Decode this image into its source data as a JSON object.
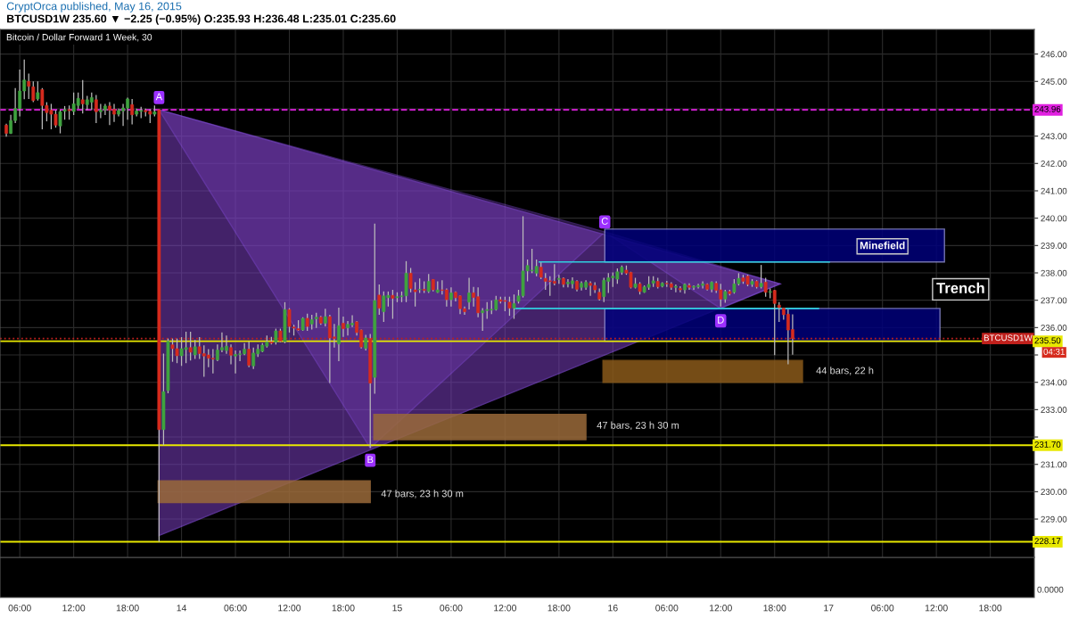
{
  "chart_data": {
    "type": "candlestick",
    "title": "Bitcoin / Dollar Forward 1 Week, 30",
    "subtitle": "BTCUSD1W 235.60 ▼ −2.25 (−0.95%) O:235.93 H:236.48 L:235.01 C:235.60",
    "x": [
      "2015-05-13T04:30",
      "2015-05-13T05:00",
      "2015-05-13T05:30",
      "2015-05-13T06:00",
      "2015-05-13T06:30",
      "2015-05-13T07:00",
      "2015-05-13T07:30",
      "2015-05-13T08:00",
      "2015-05-13T08:30",
      "2015-05-13T09:00",
      "2015-05-13T09:30",
      "2015-05-13T10:00",
      "2015-05-13T10:30",
      "2015-05-13T11:00",
      "2015-05-13T11:30",
      "2015-05-13T12:00",
      "2015-05-13T12:30",
      "2015-05-13T13:00",
      "2015-05-13T13:30",
      "2015-05-13T14:00",
      "2015-05-13T14:30",
      "2015-05-13T15:00",
      "2015-05-13T15:30",
      "2015-05-13T16:00",
      "2015-05-13T16:30",
      "2015-05-13T17:00",
      "2015-05-13T17:30",
      "2015-05-13T18:00",
      "2015-05-13T18:30",
      "2015-05-13T19:00",
      "2015-05-13T19:30",
      "2015-05-13T20:00",
      "2015-05-13T20:30",
      "2015-05-13T21:00",
      "2015-05-13T21:30",
      "2015-05-13T22:00",
      "2015-05-13T22:30",
      "2015-05-13T23:00",
      "2015-05-13T23:30",
      "2015-05-14T00:00",
      "2015-05-14T00:30",
      "2015-05-14T01:00",
      "2015-05-14T01:30",
      "2015-05-14T02:00",
      "2015-05-14T02:30",
      "2015-05-14T03:00",
      "2015-05-14T03:30",
      "2015-05-14T04:00",
      "2015-05-14T04:30",
      "2015-05-14T05:00",
      "2015-05-14T05:30",
      "2015-05-14T06:00",
      "2015-05-14T06:30",
      "2015-05-14T07:00",
      "2015-05-14T07:30",
      "2015-05-14T08:00",
      "2015-05-14T08:30",
      "2015-05-14T09:00",
      "2015-05-14T09:30",
      "2015-05-14T10:00",
      "2015-05-14T10:30",
      "2015-05-14T11:00",
      "2015-05-14T11:30",
      "2015-05-14T12:00",
      "2015-05-14T12:30",
      "2015-05-14T13:00",
      "2015-05-14T13:30",
      "2015-05-14T14:00",
      "2015-05-14T14:30",
      "2015-05-14T15:00",
      "2015-05-14T15:30",
      "2015-05-14T16:00",
      "2015-05-14T16:30",
      "2015-05-14T17:00",
      "2015-05-14T17:30",
      "2015-05-14T18:00",
      "2015-05-14T18:30",
      "2015-05-14T19:00",
      "2015-05-14T19:30",
      "2015-05-14T20:00",
      "2015-05-14T20:30",
      "2015-05-14T21:00",
      "2015-05-14T21:30",
      "2015-05-14T22:00",
      "2015-05-14T22:30",
      "2015-05-14T23:00",
      "2015-05-14T23:30",
      "2015-05-15T00:00",
      "2015-05-15T00:30",
      "2015-05-15T01:00",
      "2015-05-15T01:30",
      "2015-05-15T02:00",
      "2015-05-15T02:30",
      "2015-05-15T03:00",
      "2015-05-15T03:30",
      "2015-05-15T04:00",
      "2015-05-15T04:30",
      "2015-05-15T05:00",
      "2015-05-15T05:30",
      "2015-05-15T06:00",
      "2015-05-15T06:30",
      "2015-05-15T07:00",
      "2015-05-15T07:30",
      "2015-05-15T08:00",
      "2015-05-15T08:30",
      "2015-05-15T09:00",
      "2015-05-15T09:30",
      "2015-05-15T10:00",
      "2015-05-15T10:30",
      "2015-05-15T11:00",
      "2015-05-15T11:30",
      "2015-05-15T12:00",
      "2015-05-15T12:30",
      "2015-05-15T13:00",
      "2015-05-15T13:30",
      "2015-05-15T14:00",
      "2015-05-15T14:30",
      "2015-05-15T15:00",
      "2015-05-15T15:30",
      "2015-05-15T16:00",
      "2015-05-15T16:30",
      "2015-05-15T17:00",
      "2015-05-15T17:30",
      "2015-05-15T18:00",
      "2015-05-15T18:30",
      "2015-05-15T19:00",
      "2015-05-15T19:30",
      "2015-05-15T20:00",
      "2015-05-15T20:30",
      "2015-05-15T21:00",
      "2015-05-15T21:30",
      "2015-05-15T22:00",
      "2015-05-15T22:30",
      "2015-05-15T23:00",
      "2015-05-15T23:30",
      "2015-05-16T00:00",
      "2015-05-16T00:30",
      "2015-05-16T01:00",
      "2015-05-16T01:30",
      "2015-05-16T02:00",
      "2015-05-16T02:30",
      "2015-05-16T03:00",
      "2015-05-16T03:30",
      "2015-05-16T04:00",
      "2015-05-16T04:30",
      "2015-05-16T05:00",
      "2015-05-16T05:30",
      "2015-05-16T06:00",
      "2015-05-16T06:30",
      "2015-05-16T07:00",
      "2015-05-16T07:30",
      "2015-05-16T08:00",
      "2015-05-16T08:30",
      "2015-05-16T09:00",
      "2015-05-16T09:30",
      "2015-05-16T10:00",
      "2015-05-16T10:30",
      "2015-05-16T11:00",
      "2015-05-16T11:30",
      "2015-05-16T12:00",
      "2015-05-16T12:30",
      "2015-05-16T13:00",
      "2015-05-16T13:30",
      "2015-05-16T14:00",
      "2015-05-16T14:30",
      "2015-05-16T15:00",
      "2015-05-16T15:30",
      "2015-05-16T16:00",
      "2015-05-16T16:30",
      "2015-05-16T17:00",
      "2015-05-16T17:30",
      "2015-05-16T18:00",
      "2015-05-16T18:30",
      "2015-05-16T19:00",
      "2015-05-16T19:30",
      "2015-05-16T20:00"
    ],
    "ohlc": [
      [
        243.4,
        243.45,
        242.98,
        243.1
      ],
      [
        243.1,
        243.78,
        243.08,
        243.57
      ],
      [
        243.57,
        244.76,
        243.48,
        244.01
      ],
      [
        244.01,
        245.43,
        243.72,
        244.65
      ],
      [
        244.65,
        245.8,
        244.35,
        245.05
      ],
      [
        245.0,
        245.29,
        244.36,
        244.82
      ],
      [
        244.8,
        245.0,
        244.24,
        244.3
      ],
      [
        244.36,
        245.0,
        244.3,
        244.59
      ],
      [
        244.7,
        244.76,
        243.25,
        244.12
      ],
      [
        244.12,
        244.24,
        243.54,
        243.86
      ],
      [
        243.95,
        244.18,
        243.25,
        243.8
      ],
      [
        243.8,
        243.95,
        243.31,
        243.4
      ],
      [
        243.37,
        243.95,
        243.1,
        243.89
      ],
      [
        243.91,
        244.1,
        243.6,
        243.97
      ],
      [
        243.97,
        244.12,
        243.6,
        243.93
      ],
      [
        243.9,
        244.59,
        243.77,
        244.18
      ],
      [
        244.12,
        244.59,
        244.0,
        244.38
      ],
      [
        244.33,
        245.05,
        243.83,
        244.18
      ],
      [
        244.15,
        244.47,
        243.95,
        244.33
      ],
      [
        244.24,
        244.59,
        243.95,
        244.41
      ],
      [
        244.33,
        244.5,
        243.48,
        243.89
      ],
      [
        243.89,
        244.18,
        243.66,
        243.95
      ],
      [
        243.95,
        244.18,
        243.77,
        244.1
      ],
      [
        244.1,
        244.24,
        243.4,
        243.95
      ],
      [
        243.98,
        244.18,
        243.52,
        243.8
      ],
      [
        243.8,
        244.01,
        243.72,
        243.94
      ],
      [
        243.92,
        244.18,
        243.37,
        244.03
      ],
      [
        244.03,
        244.41,
        243.6,
        244.36
      ],
      [
        244.15,
        244.36,
        243.43,
        243.78
      ],
      [
        243.8,
        244.01,
        243.72,
        243.92
      ],
      [
        243.9,
        244.07,
        243.66,
        243.94
      ],
      [
        243.94,
        244.01,
        243.72,
        243.89
      ],
      [
        243.91,
        243.98,
        243.48,
        243.8
      ],
      [
        243.8,
        244.12,
        243.72,
        243.89
      ],
      [
        243.96,
        243.96,
        228.17,
        232.27
      ],
      [
        232.27,
        235.05,
        231.7,
        233.66
      ],
      [
        233.7,
        235.6,
        233.6,
        235.5
      ],
      [
        235.37,
        235.6,
        234.75,
        235.23
      ],
      [
        235.23,
        235.6,
        234.7,
        234.97
      ],
      [
        234.97,
        235.65,
        234.6,
        235.23
      ],
      [
        235.2,
        235.85,
        234.7,
        235.27
      ],
      [
        235.27,
        235.85,
        234.8,
        235.1
      ],
      [
        235.0,
        235.55,
        234.85,
        235.3
      ],
      [
        235.3,
        235.65,
        234.85,
        235.05
      ],
      [
        235.05,
        235.35,
        234.2,
        234.96
      ],
      [
        235.0,
        235.21,
        234.55,
        234.88
      ],
      [
        234.88,
        235.21,
        234.32,
        234.85
      ],
      [
        234.82,
        235.38,
        234.77,
        235.18
      ],
      [
        235.18,
        235.82,
        235.1,
        235.27
      ],
      [
        235.16,
        235.71,
        235.04,
        235.32
      ],
      [
        235.27,
        235.38,
        234.66,
        234.99
      ],
      [
        234.96,
        235.16,
        234.32,
        235.02
      ],
      [
        235.02,
        235.16,
        234.77,
        235.04
      ],
      [
        235.04,
        235.43,
        234.99,
        235.21
      ],
      [
        235.21,
        235.49,
        234.55,
        234.62
      ],
      [
        234.6,
        235.27,
        234.49,
        235.07
      ],
      [
        235.04,
        235.38,
        234.93,
        235.21
      ],
      [
        235.13,
        235.43,
        235.1,
        235.36
      ],
      [
        235.32,
        235.71,
        235.27,
        235.47
      ],
      [
        235.47,
        235.66,
        235.38,
        235.43
      ],
      [
        235.47,
        235.96,
        235.38,
        235.88
      ],
      [
        235.88,
        235.96,
        235.47,
        235.51
      ],
      [
        235.49,
        236.93,
        235.43,
        236.66
      ],
      [
        236.66,
        236.71,
        235.82,
        236.04
      ],
      [
        236.02,
        236.1,
        235.71,
        235.98
      ],
      [
        235.96,
        236.27,
        235.88,
        235.91
      ],
      [
        235.91,
        236.38,
        235.88,
        236.34
      ],
      [
        236.34,
        236.51,
        235.88,
        236.04
      ],
      [
        236.13,
        236.47,
        235.93,
        236.29
      ],
      [
        236.32,
        236.54,
        235.99,
        236.38
      ],
      [
        236.38,
        236.43,
        236.1,
        236.16
      ],
      [
        236.16,
        236.69,
        236.04,
        236.4
      ],
      [
        236.4,
        236.47,
        233.97,
        235.62
      ],
      [
        235.66,
        236.13,
        235.27,
        235.6
      ],
      [
        235.4,
        236.73,
        234.77,
        236.07
      ],
      [
        236.16,
        236.4,
        235.66,
        235.96
      ],
      [
        235.99,
        236.24,
        235.71,
        236.12
      ],
      [
        236.1,
        236.45,
        236.02,
        236.16
      ],
      [
        236.21,
        236.24,
        235.71,
        235.82
      ],
      [
        235.91,
        235.93,
        235.24,
        235.29
      ],
      [
        235.24,
        235.73,
        235.16,
        235.62
      ],
      [
        235.6,
        235.77,
        231.6,
        233.97
      ],
      [
        234.18,
        239.8,
        233.58,
        236.99
      ],
      [
        237.19,
        237.58,
        236.47,
        236.71
      ],
      [
        236.58,
        237.32,
        236.21,
        237.16
      ],
      [
        237.09,
        237.32,
        236.77,
        237.18
      ],
      [
        237.18,
        237.38,
        236.32,
        237.07
      ],
      [
        237.09,
        237.29,
        236.93,
        237.13
      ],
      [
        237.13,
        237.32,
        236.93,
        237.16
      ],
      [
        237.16,
        238.43,
        236.93,
        237.99
      ],
      [
        237.99,
        238.18,
        237.29,
        237.43
      ],
      [
        237.38,
        237.66,
        236.77,
        237.31
      ],
      [
        237.38,
        237.8,
        237.27,
        237.4
      ],
      [
        237.4,
        237.69,
        237.27,
        237.36
      ],
      [
        237.32,
        237.96,
        237.27,
        237.69
      ],
      [
        237.76,
        237.77,
        237.32,
        237.38
      ],
      [
        237.29,
        237.69,
        237.27,
        237.38
      ],
      [
        237.38,
        237.73,
        237.21,
        237.36
      ],
      [
        237.38,
        237.43,
        236.77,
        237.02
      ],
      [
        237.02,
        237.47,
        236.77,
        237.27
      ],
      [
        237.29,
        237.32,
        236.96,
        237.09
      ],
      [
        237.16,
        237.18,
        236.49,
        236.69
      ],
      [
        236.69,
        236.77,
        236.47,
        236.58
      ],
      [
        236.93,
        237.82,
        236.66,
        237.27
      ],
      [
        237.27,
        237.49,
        236.77,
        237.1
      ],
      [
        237.13,
        237.47,
        236.38,
        236.54
      ],
      [
        236.54,
        236.71,
        235.88,
        236.62
      ],
      [
        236.62,
        236.93,
        236.32,
        236.66
      ],
      [
        236.64,
        236.99,
        236.49,
        236.67
      ],
      [
        236.66,
        237.16,
        236.62,
        237.01
      ],
      [
        237.02,
        237.13,
        236.88,
        236.96
      ],
      [
        236.99,
        237.13,
        236.6,
        236.96
      ],
      [
        236.93,
        237.13,
        236.43,
        236.71
      ],
      [
        236.71,
        237.21,
        236.32,
        236.88
      ],
      [
        236.96,
        237.38,
        236.88,
        237.16
      ],
      [
        237.16,
        240.07,
        237.1,
        238.07
      ],
      [
        238.07,
        238.49,
        237.69,
        238.27
      ],
      [
        238.07,
        238.88,
        237.99,
        238.1
      ],
      [
        237.99,
        238.49,
        237.88,
        238.24
      ],
      [
        238.21,
        238.38,
        237.77,
        237.84
      ],
      [
        237.8,
        237.99,
        237.38,
        237.69
      ],
      [
        237.71,
        237.88,
        237.16,
        237.68
      ],
      [
        237.69,
        238.32,
        237.54,
        237.62
      ],
      [
        237.76,
        237.93,
        237.6,
        237.8
      ],
      [
        237.8,
        237.84,
        237.47,
        237.58
      ],
      [
        237.6,
        237.77,
        237.47,
        237.66
      ],
      [
        237.6,
        237.84,
        237.43,
        237.71
      ],
      [
        237.69,
        237.73,
        237.32,
        237.4
      ],
      [
        237.47,
        237.69,
        237.36,
        237.62
      ],
      [
        237.47,
        237.73,
        237.38,
        237.66
      ],
      [
        237.62,
        237.69,
        237.16,
        237.54
      ],
      [
        237.54,
        237.66,
        237.27,
        237.38
      ],
      [
        237.29,
        237.43,
        236.99,
        237.04
      ],
      [
        237.13,
        237.82,
        236.93,
        237.73
      ],
      [
        237.69,
        237.99,
        237.27,
        237.82
      ],
      [
        237.82,
        238.02,
        237.49,
        237.88
      ],
      [
        237.77,
        238.16,
        237.6,
        238.04
      ],
      [
        238.02,
        238.27,
        237.93,
        238.21
      ],
      [
        238.1,
        238.27,
        237.93,
        237.99
      ],
      [
        238.02,
        238.04,
        237.43,
        237.47
      ],
      [
        237.47,
        237.82,
        237.43,
        237.6
      ],
      [
        237.6,
        237.66,
        237.21,
        237.32
      ],
      [
        237.29,
        237.54,
        237.27,
        237.49
      ],
      [
        237.47,
        237.88,
        237.38,
        237.58
      ],
      [
        237.62,
        237.88,
        237.49,
        237.71
      ],
      [
        237.69,
        237.82,
        237.43,
        237.49
      ],
      [
        237.51,
        237.66,
        237.47,
        237.62
      ],
      [
        237.62,
        237.71,
        237.49,
        237.6
      ],
      [
        237.6,
        237.66,
        237.38,
        237.47
      ],
      [
        237.47,
        237.58,
        237.29,
        237.51
      ],
      [
        237.43,
        237.51,
        237.29,
        237.38
      ],
      [
        237.38,
        237.62,
        237.24,
        237.58
      ],
      [
        237.54,
        237.62,
        237.38,
        237.47
      ],
      [
        237.47,
        237.54,
        237.38,
        237.51
      ],
      [
        237.49,
        237.6,
        237.43,
        237.54
      ],
      [
        237.54,
        237.69,
        237.43,
        237.6
      ],
      [
        237.58,
        237.62,
        237.36,
        237.4
      ],
      [
        237.4,
        237.69,
        237.29,
        237.66
      ],
      [
        237.62,
        237.69,
        237.27,
        237.36
      ],
      [
        237.38,
        237.6,
        236.77,
        237.04
      ],
      [
        237.04,
        237.38,
        236.91,
        237.32
      ],
      [
        237.32,
        237.38,
        237.18,
        237.24
      ],
      [
        237.29,
        237.77,
        237.24,
        237.6
      ],
      [
        237.6,
        237.99,
        237.54,
        237.8
      ],
      [
        237.82,
        237.93,
        237.6,
        237.69
      ],
      [
        237.88,
        237.93,
        237.51,
        237.58
      ],
      [
        237.58,
        237.77,
        237.49,
        237.69
      ],
      [
        237.69,
        237.73,
        237.43,
        237.49
      ],
      [
        237.49,
        238.29,
        237.43,
        237.62
      ],
      [
        237.66,
        237.82,
        237.13,
        237.29
      ],
      [
        237.29,
        237.43,
        237.07,
        237.32
      ],
      [
        237.36,
        237.38,
        234.99,
        236.88
      ],
      [
        236.82,
        236.93,
        236.21,
        236.73
      ],
      [
        236.71,
        236.73,
        236.29,
        236.47
      ],
      [
        236.49,
        236.66,
        234.66,
        235.91
      ],
      [
        235.93,
        236.48,
        235.01,
        235.6
      ]
    ],
    "colors": [
      "#d62b1e",
      "#3fa33f",
      "#3fa33f",
      "#3fa33f",
      "#3fa33f",
      "#d62b1e",
      "#d62b1e",
      "#3fa33f",
      "#d62b1e",
      "#d62b1e",
      "#d62b1e",
      "#d62b1e",
      "#3fa33f",
      "#3fa33f",
      "#d62b1e",
      "#3fa33f",
      "#3fa33f",
      "#d62b1e",
      "#3fa33f",
      "#3fa33f",
      "#d62b1e",
      "#3fa33f",
      "#3fa33f",
      "#d62b1e",
      "#d62b1e",
      "#3fa33f",
      "#3fa33f",
      "#3fa33f",
      "#d62b1e",
      "#3fa33f",
      "#3fa33f",
      "#d62b1e",
      "#d62b1e",
      "#3fa33f",
      "#d62b1e",
      "#3fa33f",
      "#3fa33f",
      "#d62b1e",
      "#d62b1e",
      "#3fa33f",
      "#3fa33f",
      "#d62b1e",
      "#3fa33f",
      "#d62b1e",
      "#d62b1e",
      "#d62b1e",
      "#d62b1e",
      "#3fa33f",
      "#3fa33f",
      "#3fa33f",
      "#d62b1e",
      "#3fa33f",
      "#3fa33f",
      "#3fa33f",
      "#d62b1e",
      "#3fa33f",
      "#3fa33f",
      "#3fa33f",
      "#3fa33f",
      "#d62b1e",
      "#3fa33f",
      "#d62b1e",
      "#3fa33f",
      "#d62b1e",
      "#d62b1e",
      "#d62b1e",
      "#3fa33f",
      "#d62b1e",
      "#3fa33f",
      "#3fa33f",
      "#d62b1e",
      "#3fa33f",
      "#d62b1e",
      "#d62b1e",
      "#3fa33f",
      "#d62b1e",
      "#3fa33f",
      "#3fa33f",
      "#d62b1e",
      "#d62b1e",
      "#3fa33f",
      "#d62b1e",
      "#3fa33f",
      "#d62b1e",
      "#3fa33f",
      "#3fa33f",
      "#d62b1e",
      "#3fa33f",
      "#3fa33f",
      "#3fa33f",
      "#d62b1e",
      "#d62b1e",
      "#3fa33f",
      "#d62b1e",
      "#3fa33f",
      "#d62b1e",
      "#3fa33f",
      "#d62b1e",
      "#d62b1e",
      "#3fa33f",
      "#d62b1e",
      "#d62b1e",
      "#d62b1e",
      "#3fa33f",
      "#d62b1e",
      "#d62b1e",
      "#3fa33f",
      "#3fa33f",
      "#3fa33f",
      "#3fa33f",
      "#d62b1e",
      "#d62b1e",
      "#d62b1e",
      "#3fa33f",
      "#3fa33f",
      "#3fa33f",
      "#3fa33f",
      "#3fa33f",
      "#3fa33f",
      "#d62b1e",
      "#d62b1e",
      "#d62b1e",
      "#d62b1e",
      "#3fa33f",
      "#d62b1e",
      "#3fa33f",
      "#3fa33f",
      "#d62b1e",
      "#3fa33f",
      "#3fa33f",
      "#d62b1e",
      "#d62b1e",
      "#d62b1e",
      "#3fa33f",
      "#3fa33f",
      "#3fa33f",
      "#3fa33f",
      "#3fa33f",
      "#d62b1e",
      "#d62b1e",
      "#3fa33f",
      "#d62b1e",
      "#3fa33f",
      "#3fa33f",
      "#3fa33f",
      "#d62b1e",
      "#3fa33f",
      "#d62b1e",
      "#d62b1e",
      "#3fa33f",
      "#d62b1e",
      "#3fa33f",
      "#d62b1e",
      "#3fa33f",
      "#3fa33f",
      "#3fa33f",
      "#d62b1e",
      "#3fa33f",
      "#d62b1e",
      "#d62b1e",
      "#3fa33f",
      "#d62b1e",
      "#3fa33f",
      "#3fa33f",
      "#d62b1e",
      "#d62b1e",
      "#3fa33f",
      "#d62b1e",
      "#3fa33f",
      "#d62b1e",
      "#3fa33f",
      "#d62b1e",
      "#d62b1e",
      "#d62b1e",
      "#d62b1e",
      "#d62b1e"
    ],
    "series": [
      {
        "type": "line",
        "color": "#30d0e0",
        "x": [
          "2015-05-15T15:48",
          "2015-05-17T00:06"
        ],
        "values": [
          238.4,
          238.4
        ]
      },
      {
        "type": "line",
        "color": "#30d0e0",
        "x": [
          "2015-05-15T13:06",
          "2015-05-16T22:54"
        ],
        "values": [
          236.7,
          236.7
        ]
      }
    ],
    "xlim": [
      "2015-05-13T03:48",
      "2015-05-17T22:54"
    ],
    "xticks": [
      {
        "value": "2015-05-13T06:00",
        "label": "06:00"
      },
      {
        "value": "2015-05-13T12:00",
        "label": "12:00"
      },
      {
        "value": "2015-05-13T18:00",
        "label": "18:00"
      },
      {
        "value": "2015-05-14",
        "label": "14"
      },
      {
        "value": "2015-05-14T06:00",
        "label": "06:00"
      },
      {
        "value": "2015-05-14T12:00",
        "label": "12:00"
      },
      {
        "value": "2015-05-14T18:00",
        "label": "18:00"
      },
      {
        "value": "2015-05-15",
        "label": "15"
      },
      {
        "value": "2015-05-15T06:00",
        "label": "06:00"
      },
      {
        "value": "2015-05-15T12:00",
        "label": "12:00"
      },
      {
        "value": "2015-05-15T18:00",
        "label": "18:00"
      },
      {
        "value": "2015-05-16",
        "label": "16"
      },
      {
        "value": "2015-05-16T06:00",
        "label": "06:00"
      },
      {
        "value": "2015-05-16T12:00",
        "label": "12:00"
      },
      {
        "value": "2015-05-16T18:00",
        "label": "18:00"
      },
      {
        "value": "2015-05-17",
        "label": "17"
      },
      {
        "value": "2015-05-17T06:00",
        "label": "06:00"
      },
      {
        "value": "2015-05-17T12:00",
        "label": "12:00"
      },
      {
        "value": "2015-05-17T18:00",
        "label": "18:00"
      }
    ],
    "ylim": [
      227.6,
      246.9
    ],
    "yticks": [
      {
        "value": 229,
        "label": "229.00"
      },
      {
        "value": 230,
        "label": "230.00"
      },
      {
        "value": 231,
        "label": "231.00"
      },
      {
        "value": 232,
        "label": null
      },
      {
        "value": 233,
        "label": "233.00"
      },
      {
        "value": 234,
        "label": "234.00"
      },
      {
        "value": 235,
        "label": null
      },
      {
        "value": 236,
        "label": "236.00"
      },
      {
        "value": 237,
        "label": "237.00"
      },
      {
        "value": 238,
        "label": "238.00"
      },
      {
        "value": 239,
        "label": "239.00"
      },
      {
        "value": 240,
        "label": "240.00"
      },
      {
        "value": 241,
        "label": "241.00"
      },
      {
        "value": 242,
        "label": "242.00"
      },
      {
        "value": 243,
        "label": "243.00"
      },
      {
        "value": 244,
        "label": null
      },
      {
        "value": 245,
        "label": "245.00"
      },
      {
        "value": 246,
        "label": "246.00"
      }
    ],
    "grid": true,
    "ref_lines": [
      {
        "axis": "y",
        "value": 243.96,
        "label": "243.96",
        "color": "#e020e0",
        "line_style": "dashed"
      },
      {
        "axis": "y",
        "value": 235.6,
        "label": "BTCUSD1W",
        "color": "#c0201c",
        "line_style": "dotted"
      },
      {
        "axis": "y",
        "value": 235.5,
        "label": "235.50",
        "color": "#e8e800",
        "line_style": "solid"
      },
      {
        "axis": "y",
        "value": 231.7,
        "label": "231.70",
        "color": "#e8e800",
        "line_style": "solid"
      },
      {
        "axis": "y",
        "value": 228.17,
        "label": "228.17",
        "color": "#e8e800",
        "line_style": "solid"
      }
    ],
    "annotations": [
      {
        "text": "A",
        "x": "2015-05-13T21:30",
        "y": 243.96
      },
      {
        "text": "B",
        "x": "2015-05-14T21:00",
        "y": 231.6
      },
      "C",
      "D",
      "Minefield",
      "Trench",
      "44 bars, 22 h",
      "47 bars, 23 h 30 m",
      "47 bars, 23 h 30 m",
      "CryptOrca published, May 16, 2015",
      "04:31",
      "0.0000"
    ]
  }
}
